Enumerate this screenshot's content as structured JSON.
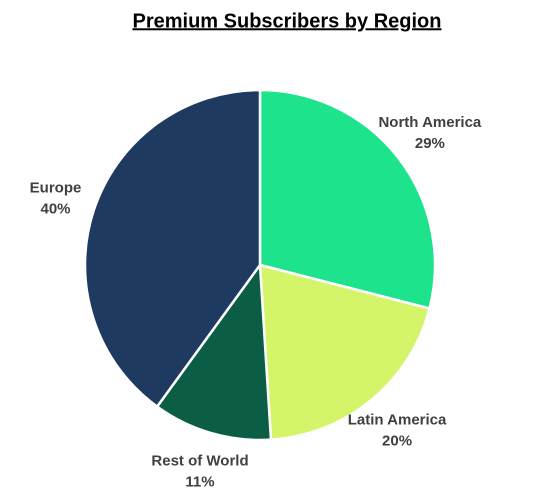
{
  "chart_data": {
    "type": "pie",
    "title": "Premium Subscribers by Region",
    "categories": [
      "North America",
      "Latin America",
      "Rest of World",
      "Europe"
    ],
    "values": [
      29,
      20,
      11,
      40
    ],
    "value_labels": [
      "29%",
      "20%",
      "11%",
      "40%"
    ],
    "colors": [
      "#1de38c",
      "#d4f56a",
      "#0b5e45",
      "#1f3a60"
    ]
  }
}
